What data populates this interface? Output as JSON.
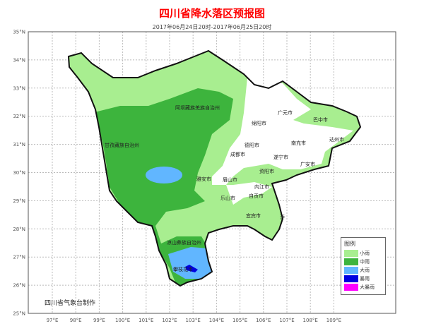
{
  "title": "四川省降水落区预报图",
  "subtitle": "2017年06月24日20时-2017年06月25日20时",
  "credit": "四川省气象台制作",
  "lat_ticks": [
    "35°N",
    "34°N",
    "33°N",
    "32°N",
    "31°N",
    "30°N",
    "29°N",
    "28°N",
    "27°N",
    "26°N",
    "25°N"
  ],
  "lon_ticks": [
    "97°E",
    "98°E",
    "99°E",
    "100°E",
    "101°E",
    "102°E",
    "103°E",
    "104°E",
    "105°E",
    "106°E",
    "107°E",
    "108°E",
    "109°E"
  ],
  "legend": {
    "title": "图例",
    "items": [
      {
        "label": "小雨",
        "color": "#a8ee90"
      },
      {
        "label": "中雨",
        "color": "#3db43d"
      },
      {
        "label": "大雨",
        "color": "#61b6ff"
      },
      {
        "label": "暴雨",
        "color": "#0000e0"
      },
      {
        "label": "大暴雨",
        "color": "#ff00ff"
      }
    ]
  },
  "regions": {
    "aba": "阿坝藏族羌族自治州",
    "ganzi": "甘孜藏族自治州",
    "liangshan": "凉山彝族自治州",
    "panzhihua": "攀枝花市",
    "guangyuan": "广元市",
    "bazhong": "巴中市",
    "mianyang": "绵阳市",
    "deyang": "德阳市",
    "chengdu": "成都市",
    "nanchong": "南充市",
    "dazhou": "达州市",
    "suining": "遂宁市",
    "guangan": "广安市",
    "ziyang": "资阳市",
    "yaan": "雅安市",
    "meishan": "眉山市",
    "neijiang": "内江市",
    "leshan": "乐山市",
    "zigong": "自贡市",
    "yibin": "宜宾市",
    "luzhou": "泸"
  }
}
